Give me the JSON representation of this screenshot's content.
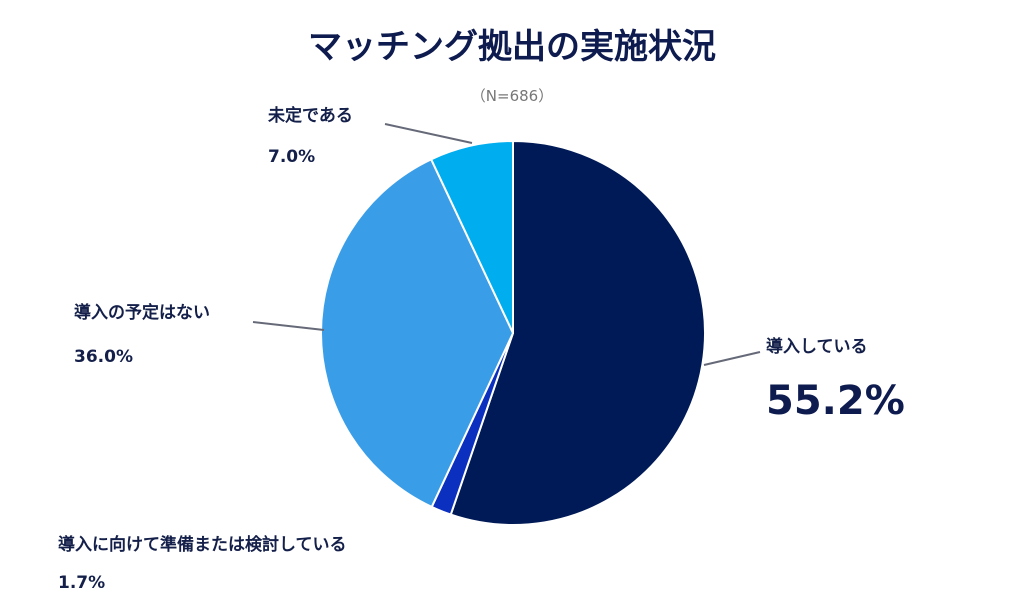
{
  "chart_data": {
    "type": "pie",
    "title": "マッチング拠出の実施状況",
    "subtitle": "（N=686）",
    "slices": [
      {
        "label": "導入している",
        "value": 55.2,
        "display": "55.2%",
        "color": "#001a57"
      },
      {
        "label": "導入に向けて準備または検討している",
        "value": 1.7,
        "display": "1.7%",
        "color": "#0b2fbe"
      },
      {
        "label": "導入の予定はない",
        "value": 36.0,
        "display": "36.0%",
        "color": "#3a9de8"
      },
      {
        "label": "未定である",
        "value": 7.0,
        "display": "7.0%",
        "color": "#00adef"
      }
    ]
  }
}
